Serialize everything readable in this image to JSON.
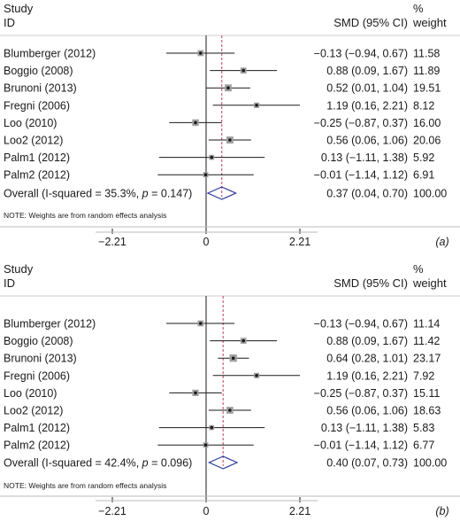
{
  "chart_data": [
    {
      "type": "forest",
      "panel_label": "(a)",
      "headers": {
        "study": "Study",
        "id": "ID",
        "effect": "SMD (95% CI)",
        "weight_pct": "%",
        "weight": "weight"
      },
      "studies": [
        {
          "name": "Blumberger (2012)",
          "smd": -0.13,
          "lower": -0.94,
          "upper": 0.67,
          "ci_text": "−0.13 (−0.94, 0.67)",
          "weight": 11.58,
          "weight_text": "11.58"
        },
        {
          "name": "Boggio (2008)",
          "smd": 0.88,
          "lower": 0.09,
          "upper": 1.67,
          "ci_text": "0.88 (0.09, 1.67)",
          "weight": 11.89,
          "weight_text": "11.89"
        },
        {
          "name": "Brunoni (2013)",
          "smd": 0.52,
          "lower": 0.01,
          "upper": 1.04,
          "ci_text": "0.52 (0.01, 1.04)",
          "weight": 19.51,
          "weight_text": "19.51"
        },
        {
          "name": "Fregni (2006)",
          "smd": 1.19,
          "lower": 0.16,
          "upper": 2.21,
          "ci_text": "1.19 (0.16, 2.21)",
          "weight": 8.12,
          "weight_text": "8.12"
        },
        {
          "name": "Loo (2010)",
          "smd": -0.25,
          "lower": -0.87,
          "upper": 0.37,
          "ci_text": "−0.25 (−0.87, 0.37)",
          "weight": 16.0,
          "weight_text": "16.00"
        },
        {
          "name": "Loo2 (2012)",
          "smd": 0.56,
          "lower": 0.06,
          "upper": 1.06,
          "ci_text": "0.56 (0.06, 1.06)",
          "weight": 20.06,
          "weight_text": "20.06"
        },
        {
          "name": "Palm1 (2012)",
          "smd": 0.13,
          "lower": -1.11,
          "upper": 1.38,
          "ci_text": "0.13 (−1.11, 1.38)",
          "weight": 5.92,
          "weight_text": "5.92"
        },
        {
          "name": "Palm2 (2012)",
          "smd": -0.01,
          "lower": -1.14,
          "upper": 1.12,
          "ci_text": "−0.01 (−1.14, 1.12)",
          "weight": 6.91,
          "weight_text": "6.91"
        }
      ],
      "overall": {
        "label_prefix": "Overall (I-squared = 35.3%, ",
        "p_symbol": "p",
        "label_suffix": " = 0.147)",
        "smd": 0.37,
        "lower": 0.04,
        "upper": 0.7,
        "ci_text": "0.37 (0.04, 0.70)",
        "weight_text": "100.00"
      },
      "note": "NOTE: Weights are from random effects analysis",
      "xlim": [
        -2.21,
        2.21
      ],
      "ticks": [
        {
          "value": -2.21,
          "label": "−2.21"
        },
        {
          "value": 0,
          "label": "0"
        },
        {
          "value": 2.21,
          "label": "2.21"
        }
      ]
    },
    {
      "type": "forest",
      "panel_label": "(b)",
      "headers": {
        "study": "Study",
        "id": "ID",
        "effect": "SMD (95% CI)",
        "weight_pct": "%",
        "weight": "weight"
      },
      "studies": [
        {
          "name": "Blumberger (2012)",
          "smd": -0.13,
          "lower": -0.94,
          "upper": 0.67,
          "ci_text": "−0.13 (−0.94, 0.67)",
          "weight": 11.14,
          "weight_text": "11.14"
        },
        {
          "name": "Boggio (2008)",
          "smd": 0.88,
          "lower": 0.09,
          "upper": 1.67,
          "ci_text": "0.88 (0.09, 1.67)",
          "weight": 11.42,
          "weight_text": "11.42"
        },
        {
          "name": "Brunoni (2013)",
          "smd": 0.64,
          "lower": 0.28,
          "upper": 1.01,
          "ci_text": "0.64 (0.28, 1.01)",
          "weight": 23.17,
          "weight_text": "23.17"
        },
        {
          "name": "Fregni (2006)",
          "smd": 1.19,
          "lower": 0.16,
          "upper": 2.21,
          "ci_text": "1.19 (0.16, 2.21)",
          "weight": 7.92,
          "weight_text": "7.92"
        },
        {
          "name": "Loo (2010)",
          "smd": -0.25,
          "lower": -0.87,
          "upper": 0.37,
          "ci_text": "−0.25 (−0.87, 0.37)",
          "weight": 15.11,
          "weight_text": "15.11"
        },
        {
          "name": "Loo2 (2012)",
          "smd": 0.56,
          "lower": 0.06,
          "upper": 1.06,
          "ci_text": "0.56 (0.06, 1.06)",
          "weight": 18.63,
          "weight_text": "18.63"
        },
        {
          "name": "Palm1 (2012)",
          "smd": 0.13,
          "lower": -1.11,
          "upper": 1.38,
          "ci_text": "0.13 (−1.11, 1.38)",
          "weight": 5.83,
          "weight_text": "5.83"
        },
        {
          "name": "Palm2 (2012)",
          "smd": -0.01,
          "lower": -1.14,
          "upper": 1.12,
          "ci_text": "−0.01 (−1.14, 1.12)",
          "weight": 6.77,
          "weight_text": "6.77"
        }
      ],
      "overall": {
        "label_prefix": "Overall (I-squared = 42.4%, ",
        "p_symbol": "p",
        "label_suffix": " = 0.096)",
        "smd": 0.4,
        "lower": 0.07,
        "upper": 0.73,
        "ci_text": "0.40 (0.07, 0.73)",
        "weight_text": "100.00"
      },
      "note": "NOTE: Weights are from random effects analysis",
      "xlim": [
        -2.21,
        2.21
      ],
      "ticks": [
        {
          "value": -2.21,
          "label": "−2.21"
        },
        {
          "value": 0,
          "label": "0"
        },
        {
          "value": 2.21,
          "label": "2.21"
        }
      ]
    }
  ],
  "colors": {
    "text": "#1a1a1a",
    "ci_line": "#1a1a1a",
    "weight_box": "#a0a0a0",
    "reference_line": "#1a1a1a",
    "overall_line": "#c0405a",
    "diamond": "#2f3c9a",
    "frame": "#bbbbbb"
  }
}
